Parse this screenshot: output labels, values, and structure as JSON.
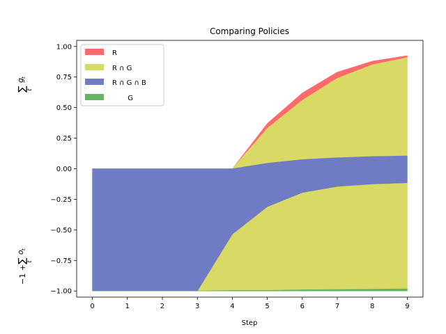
{
  "chart_data": {
    "type": "area",
    "title": "Comparing Policies",
    "xlabel": "Step",
    "ylabel_top": "∑",
    "ylabel_top_sub": "t",
    "ylabel_top_sym": "g",
    "ylabel_top_symsub": "t",
    "ylabel_bottom_prefix": "−1 + ",
    "ylabel_bottom_sum": "∑",
    "ylabel_bottom_sub": "t",
    "ylabel_bottom_sym": "o",
    "ylabel_bottom_symsub": "t",
    "xlim": [
      -0.45,
      9.45
    ],
    "ylim": [
      -1.05,
      1.05
    ],
    "x": [
      0,
      1,
      2,
      3,
      4,
      5,
      6,
      7,
      8,
      9
    ],
    "xticks": [
      "0",
      "1",
      "2",
      "3",
      "4",
      "5",
      "6",
      "7",
      "8",
      "9"
    ],
    "yticks": [
      {
        "value": 1.0,
        "label": "1.00"
      },
      {
        "value": 0.75,
        "label": "0.75"
      },
      {
        "value": 0.5,
        "label": "0.50"
      },
      {
        "value": 0.25,
        "label": "0.25"
      },
      {
        "value": 0.0,
        "label": "0.00"
      },
      {
        "value": -0.25,
        "label": "−0.25"
      },
      {
        "value": -0.5,
        "label": "−0.50"
      },
      {
        "value": -0.75,
        "label": "−0.75"
      },
      {
        "value": -1.0,
        "label": "−1.00"
      }
    ],
    "series": [
      {
        "name": "R",
        "color": "#ff6b6b",
        "lower": [
          0,
          0,
          0,
          0,
          0,
          0.33,
          0.56,
          0.74,
          0.85,
          0.91
        ],
        "upper": [
          0,
          0,
          0,
          0,
          0,
          0.37,
          0.62,
          0.79,
          0.88,
          0.925
        ]
      },
      {
        "name": "R ∩ G",
        "color": "#d9d966",
        "lower": [
          0,
          0,
          0,
          0,
          0,
          0.045,
          0.075,
          0.09,
          0.1,
          0.105
        ],
        "upper": [
          0,
          0,
          0,
          0,
          0,
          0.33,
          0.56,
          0.74,
          0.85,
          0.91
        ]
      },
      {
        "name": "R ∩ G",
        "color": "#d9d966",
        "lower": [
          -1,
          -1,
          -1,
          -1,
          -0.995,
          -0.995,
          -0.99,
          -0.988,
          -0.985,
          -0.982
        ],
        "upper": [
          -1,
          -1,
          -1,
          -1,
          -0.535,
          -0.31,
          -0.195,
          -0.145,
          -0.125,
          -0.115
        ]
      },
      {
        "name": "R ∩ G ∩ B",
        "color": "#6f7bc2",
        "lower": [
          -1,
          -1,
          -1,
          -1,
          -0.535,
          -0.31,
          -0.195,
          -0.145,
          -0.125,
          -0.115
        ],
        "upper": [
          0,
          0,
          0,
          0,
          0,
          0.045,
          0.075,
          0.09,
          0.1,
          0.105
        ]
      },
      {
        "name": "G",
        "color": "#66b366",
        "lower": [
          -1,
          -1,
          -1,
          -1,
          -1,
          -1,
          -1,
          -1,
          -1,
          -1
        ],
        "upper": [
          -1,
          -1,
          -1,
          -1,
          -0.995,
          -0.995,
          -0.99,
          -0.988,
          -0.985,
          -0.982
        ]
      }
    ],
    "legend": [
      {
        "label": "R",
        "color": "#ff6b6b"
      },
      {
        "label": "R ∩ G",
        "color": "#d9d966"
      },
      {
        "label": "R ∩ G ∩ B",
        "color": "#6f7bc2"
      },
      {
        "label": "       G",
        "color": "#66b366"
      }
    ],
    "legend_position": "top-left",
    "grid": false
  }
}
